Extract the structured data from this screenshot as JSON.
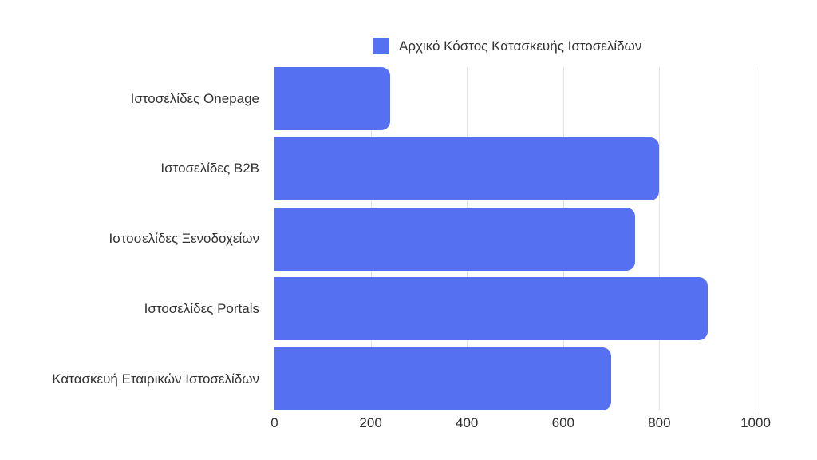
{
  "legend": {
    "label": "Αρχικό Κόστος Κατασκευής Ιστοσελίδων",
    "swatch_color": "#5571f2"
  },
  "chart_data": {
    "type": "bar",
    "orientation": "horizontal",
    "title": "",
    "categories": [
      "Ιστοσελίδες Onepage",
      "Ιστοσελίδες B2B",
      "Ιστοσελίδες Ξενοδοχείων",
      "Ιστοσελίδες Portals",
      "Κατασκευή Εταιρικών Ιστοσελίδων"
    ],
    "series": [
      {
        "name": "Αρχικό Κόστος Κατασκευής Ιστοσελίδων",
        "values": [
          240,
          800,
          750,
          900,
          700
        ],
        "color": "#5571f2"
      }
    ],
    "xlabel": "",
    "ylabel": "",
    "xlim": [
      0,
      1000
    ],
    "xticks": [
      0,
      200,
      400,
      600,
      800,
      1000
    ],
    "grid": true,
    "gridline_color": "#e3e3e3",
    "text_color": "#333333",
    "legend_position": "top",
    "background": "#ffffff"
  }
}
